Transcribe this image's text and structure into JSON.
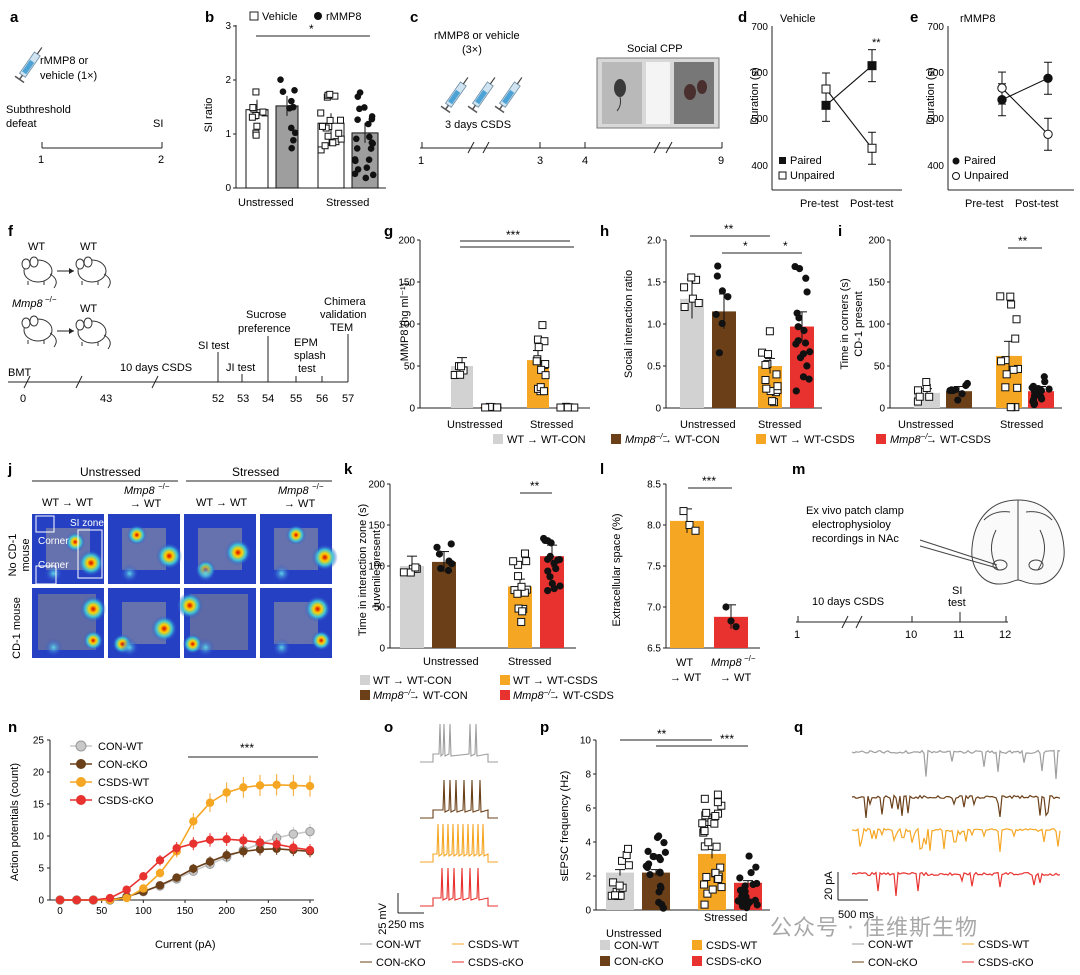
{
  "panels": {
    "a": "a",
    "b": "b",
    "c": "c",
    "d": "d",
    "e": "e",
    "f": "f",
    "g": "g",
    "h": "h",
    "i": "i",
    "j": "j",
    "k": "k",
    "l": "l",
    "m": "m",
    "n": "n",
    "o": "o",
    "p": "p",
    "q": "q"
  },
  "colors": {
    "wt_con": "#d2d2d2",
    "ko_con": "#6b4019",
    "wt_csds": "#f5a623",
    "ko_csds": "#e8322f",
    "grey_bar": "#b5b5b5"
  },
  "a": {
    "syringe_label": "rMMP8 or vehicle (1×)",
    "defeat": "Subthreshold defeat",
    "si": "SI",
    "ticks": [
      "1",
      "2"
    ]
  },
  "b": {
    "ylabel": "SI ratio",
    "legend_vehicle": "Vehicle",
    "legend_rmmp8": "rMMP8",
    "groups": [
      "Unstressed",
      "Stressed"
    ],
    "yticks": [
      "0",
      "1",
      "2",
      "3"
    ],
    "sig": "*"
  },
  "c": {
    "syringe_label": "rMMP8 or vehicle",
    "syringe_count": "(3×)",
    "csds": "3 days CSDS",
    "cpp": "Social CPP",
    "ticks": [
      "1",
      "3",
      "4",
      "9"
    ]
  },
  "d": {
    "title": "Vehicle",
    "ylabel": "Duration (s)",
    "yticks": [
      "400",
      "500",
      "600",
      "700"
    ],
    "x": [
      "Pre-test",
      "Post-test"
    ],
    "legend": [
      "Paired",
      "Unpaired"
    ],
    "sig": "**"
  },
  "e": {
    "title": "rMMP8",
    "ylabel": "Duration (s)",
    "yticks": [
      "400",
      "500",
      "600",
      "700"
    ],
    "x": [
      "Pre-test",
      "Post-test"
    ],
    "legend": [
      "Paired",
      "Unpaired"
    ]
  },
  "f": {
    "wt": "WT",
    "mmp8": "Mmp8",
    "ko_sup": "−/−",
    "bmt": "BMT",
    "csds": "10 days CSDS",
    "si_test": "SI test",
    "ji_test": "JI test",
    "sucrose": "Sucrose preference",
    "epm": "EPM splash test",
    "chimera": "Chimera validation TEM",
    "ticks": [
      "0",
      "43",
      "52",
      "53",
      "54",
      "55",
      "56",
      "57"
    ]
  },
  "g": {
    "ylabel": "MMP8 (ng ml⁻¹)",
    "yticks": [
      "0",
      "50",
      "100",
      "150",
      "200"
    ],
    "groups": [
      "Unstressed",
      "Stressed"
    ],
    "sig": "***"
  },
  "h": {
    "ylabel": "Social interaction ratio",
    "yticks": [
      "0",
      "0.5",
      "1.0",
      "1.5",
      "2.0"
    ],
    "groups": [
      "Unstressed",
      "Stressed"
    ],
    "sig1": "**",
    "sig2": "*",
    "sig3": "*"
  },
  "i": {
    "ylabel1": "Time in corners (s)",
    "ylabel2": "CD-1 present",
    "yticks": [
      "0",
      "50",
      "100",
      "150",
      "200"
    ],
    "groups": [
      "Unstressed",
      "Stressed"
    ],
    "sig": "**"
  },
  "legend_fg": [
    "WT → WT-CON",
    "→ WT-CON",
    "WT → WT-CSDS",
    "→ WT-CSDS"
  ],
  "j": {
    "unstressed": "Unstressed",
    "stressed": "Stressed",
    "col1": "WT → WT",
    "col2": "Mmp8",
    "col2b": "→ WT",
    "col3": "WT → WT",
    "col4": "Mmp8",
    "col4b": "→ WT",
    "row1a": "No CD-1",
    "row1b": "mouse",
    "row2": "CD-1 mouse",
    "corner": "Corner",
    "si_zone": "SI zone",
    "ko_sup": "−/−"
  },
  "k": {
    "ylabel1": "Time in interaction zone (s)",
    "ylabel2": "Juvenile present",
    "yticks": [
      "0",
      "50",
      "100",
      "150",
      "200"
    ],
    "groups": [
      "Unstressed",
      "Stressed"
    ],
    "sig": "**"
  },
  "l": {
    "ylabel": "Extracellular space (%)",
    "yticks": [
      "6.5",
      "7.0",
      "7.5",
      "8.0",
      "8.5"
    ],
    "x1a": "WT",
    "x1b": "→ WT",
    "x2a": "Mmp8",
    "x2b": "→ WT",
    "sig": "***"
  },
  "m": {
    "text1": "Ex vivo patch clamp",
    "text2": "electrophysioloy",
    "text3": "recordings in NAc",
    "csds": "10 days CSDS",
    "si": "SI",
    "test": "test",
    "ticks": [
      "1",
      "10",
      "11",
      "12"
    ]
  },
  "n": {
    "ylabel": "Action potentials (count)",
    "xlabel": "Current (pA)",
    "yticks": [
      "0",
      "5",
      "10",
      "15",
      "20",
      "25"
    ],
    "xticks": [
      "0",
      "50",
      "100",
      "150",
      "200",
      "250",
      "300"
    ],
    "legend": [
      "CON-WT",
      "CON-cKO",
      "CSDS-WT",
      "CSDS-cKO"
    ],
    "sig": "***"
  },
  "o": {
    "scale_v": "25 mV",
    "scale_t": "250 ms"
  },
  "p": {
    "ylabel": "sEPSC frequency (Hz)",
    "yticks": [
      "0",
      "2",
      "4",
      "6",
      "8",
      "10"
    ],
    "groups": [
      "Unstressed",
      "Stressed"
    ],
    "legend": [
      "CON-WT",
      "CSDS-WT",
      "CON-cKO",
      "CSDS-cKO"
    ],
    "sig1": "**",
    "sig2": "***"
  },
  "q": {
    "scale_i": "20 pA",
    "scale_t": "500 ms"
  },
  "legend_oq": [
    "CON-WT",
    "CSDS-WT",
    "CON-cKO",
    "CSDS-cKO"
  ],
  "watermark": "公众号 · 佳维斯生物",
  "chart_data": [
    {
      "id": "b",
      "type": "bar",
      "ylabel": "SI ratio",
      "ylim": [
        0,
        3
      ],
      "categories": [
        "Unstressed",
        "Stressed"
      ],
      "series": [
        {
          "name": "Vehicle",
          "values": [
            1.45,
            1.2
          ]
        },
        {
          "name": "rMMP8",
          "values": [
            1.52,
            1.02
          ]
        }
      ]
    },
    {
      "id": "d",
      "type": "line",
      "title": "Vehicle",
      "ylabel": "Duration (s)",
      "ylim": [
        350,
        700
      ],
      "x": [
        "Pre-test",
        "Post-test"
      ],
      "series": [
        {
          "name": "Paired",
          "values": [
            530,
            615
          ]
        },
        {
          "name": "Unpaired",
          "values": [
            565,
            438
          ]
        }
      ]
    },
    {
      "id": "e",
      "type": "line",
      "title": "rMMP8",
      "ylabel": "Duration (s)",
      "ylim": [
        350,
        700
      ],
      "x": [
        "Pre-test",
        "Post-test"
      ],
      "series": [
        {
          "name": "Paired",
          "values": [
            542,
            588
          ]
        },
        {
          "name": "Unpaired",
          "values": [
            567,
            468
          ]
        }
      ]
    },
    {
      "id": "g",
      "type": "bar",
      "ylabel": "MMP8 (ng ml⁻¹)",
      "ylim": [
        0,
        200
      ],
      "categories": [
        "WT → WT-CON",
        "Mmp8−/− → WT-CON",
        "WT → WT-CSDS",
        "Mmp8−/− → WT-CSDS"
      ],
      "values": [
        50,
        1,
        57,
        1
      ]
    },
    {
      "id": "h",
      "type": "bar",
      "ylabel": "Social interaction ratio",
      "ylim": [
        0,
        2
      ],
      "categories": [
        "WT → WT-CON",
        "Mmp8−/− → WT-CON",
        "WT → WT-CSDS",
        "Mmp8−/− → WT-CSDS"
      ],
      "values": [
        1.3,
        1.15,
        0.5,
        0.97
      ]
    },
    {
      "id": "i",
      "type": "bar",
      "ylabel": "Time in corners (s) CD-1 present",
      "ylim": [
        0,
        200
      ],
      "categories": [
        "WT → WT-CON",
        "Mmp8−/− → WT-CON",
        "WT → WT-CSDS",
        "Mmp8−/− → WT-CSDS"
      ],
      "values": [
        18,
        20,
        62,
        20
      ]
    },
    {
      "id": "k",
      "type": "bar",
      "ylabel": "Time in interaction zone (s) Juvenile present",
      "ylim": [
        0,
        200
      ],
      "categories": [
        "WT → WT-CON",
        "Mmp8−/− → WT-CON",
        "WT → WT-CSDS",
        "Mmp8−/− → WT-CSDS"
      ],
      "values": [
        100,
        105,
        75,
        112
      ]
    },
    {
      "id": "l",
      "type": "bar",
      "ylabel": "Extracellular space (%)",
      "ylim": [
        6.5,
        8.5
      ],
      "categories": [
        "WT → WT",
        "Mmp8−/− → WT"
      ],
      "values": [
        8.05,
        6.88
      ]
    },
    {
      "id": "n",
      "type": "line",
      "xlabel": "Current (pA)",
      "ylabel": "Action potentials (count)",
      "xlim": [
        0,
        300
      ],
      "ylim": [
        0,
        25
      ],
      "x": [
        0,
        20,
        40,
        60,
        80,
        100,
        120,
        140,
        160,
        180,
        200,
        220,
        240,
        260,
        280,
        300
      ],
      "series": [
        {
          "name": "CON-WT",
          "values": [
            0,
            0,
            0,
            0,
            0.5,
            1.3,
            2.2,
            3.3,
            4.5,
            5.6,
            6.7,
            7.8,
            8.8,
            9.7,
            10.3,
            10.7
          ]
        },
        {
          "name": "CON-cKO",
          "values": [
            0,
            0,
            0,
            0,
            0.5,
            1.3,
            2.3,
            3.5,
            4.9,
            6,
            7,
            7.6,
            7.9,
            8,
            7.8,
            7.6
          ]
        },
        {
          "name": "CSDS-WT",
          "values": [
            0,
            0,
            0,
            0,
            0.3,
            1.8,
            4.2,
            7.6,
            12.3,
            15.2,
            16.8,
            17.6,
            17.9,
            18,
            17.9,
            17.8
          ]
        },
        {
          "name": "CSDS-cKO",
          "values": [
            0,
            0,
            0,
            0.3,
            1.6,
            3.7,
            6.2,
            8.1,
            8.8,
            9.4,
            9.5,
            9.3,
            9,
            8.7,
            8.2,
            7.8
          ]
        }
      ]
    },
    {
      "id": "p",
      "type": "bar",
      "ylabel": "sEPSC frequency (Hz)",
      "ylim": [
        0,
        10
      ],
      "categories": [
        "CON-WT",
        "CON-cKO",
        "CSDS-WT",
        "CSDS-cKO"
      ],
      "values": [
        2.2,
        2.2,
        3.3,
        1.6
      ]
    }
  ]
}
